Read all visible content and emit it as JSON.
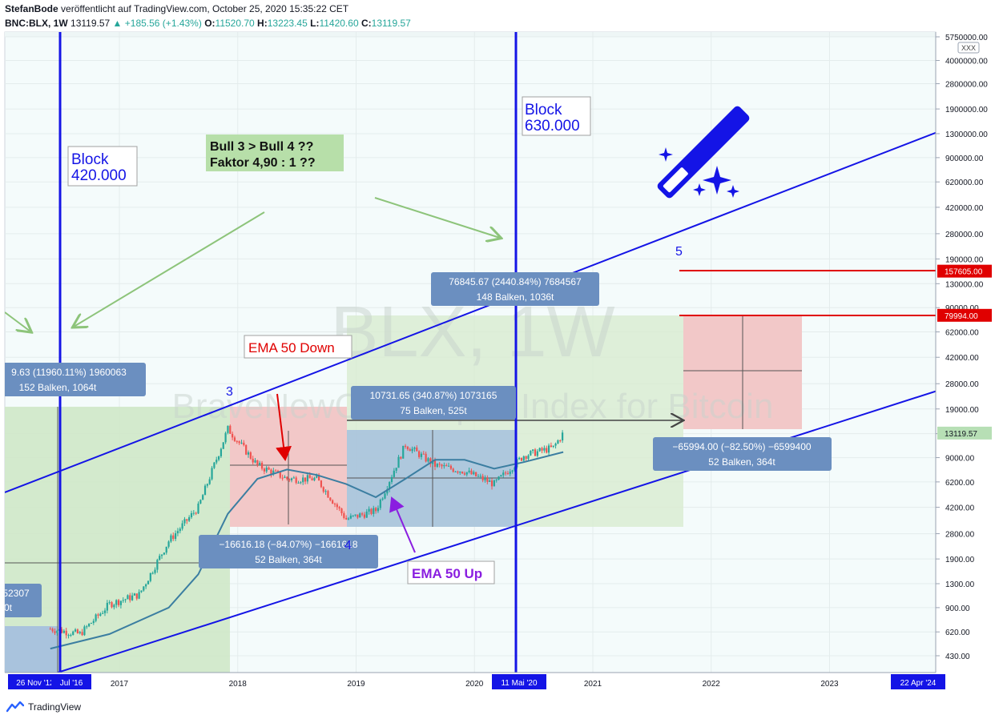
{
  "header": {
    "author": "StefanBode",
    "published": "veröffentlicht auf TradingView.com, October 25, 2020 15:35:22 CET",
    "symbol": "BNC:BLX, 1W",
    "last": "13119.57",
    "change": "+185.56 (+1.43%)",
    "o_label": "O:",
    "o_value": "11520.70",
    "h_label": "H:",
    "h_value": "13223.45",
    "l_label": "L:",
    "l_value": "11420.60",
    "c_label": "C:",
    "c_value": "13119.57"
  },
  "footer": {
    "brand": "TradingView"
  },
  "colors": {
    "channel": "#1414e6",
    "block": "#1414e6",
    "red_level": "#e00000",
    "green_zone": "#cfe8c8",
    "red_zone": "#f2c8c8",
    "blue_zone": "#a9c3dd",
    "ema": "#3b7ea1",
    "candle_up": "#26a69a",
    "candle_down": "#ef5350",
    "label_bg": "#6b8fc0",
    "arrow_green": "#8dc47a",
    "last_price": "#b7dfb5"
  },
  "chart_data": {
    "type": "candlestick",
    "scale": "log",
    "watermark": {
      "line1": "BLX, 1W",
      "line2": "BraveNewCoin Liquid Index for Bitcoin"
    },
    "y_ticks": [
      "5750000.00",
      "4000000.00",
      "2800000.00",
      "1900000.00",
      "1300000.00",
      "900000.00",
      "620000.00",
      "420000.00",
      "280000.00",
      "190000.00",
      "130000.00",
      "90000.00",
      "62000.00",
      "42000.00",
      "28000.00",
      "19000.00",
      "13000.00",
      "9000.00",
      "6200.00",
      "4200.00",
      "2800.00",
      "1900.00",
      "1300.00",
      "900.00",
      "620.00",
      "430.00"
    ],
    "x_ticks": [
      "2017",
      "2018",
      "2019",
      "2020",
      "2021",
      "2022",
      "2023"
    ],
    "x_highlight_labels": [
      "26 Nov '12",
      "Jul '16",
      "11 Mai '20",
      "22 Apr '24"
    ],
    "price_badges": [
      {
        "value": "157605.00",
        "color": "#e00000"
      },
      {
        "value": "79994.00",
        "color": "#e00000"
      },
      {
        "value": "13119.57",
        "color": "#b7dfb5"
      }
    ],
    "corner_tag": "XXX",
    "annotations": {
      "block1": {
        "line1": "Block",
        "line2": "420.000"
      },
      "block2": {
        "line1": "Block",
        "line2": "630.000"
      },
      "bull": {
        "line1": "Bull 3 > Bull 4 ??",
        "line2": "Faktor 4,90 : 1 ??"
      },
      "ema_down": "EMA 50 Down",
      "ema_up": "EMA 50 Up",
      "wave3": "3",
      "wave4": "4",
      "wave5": "5"
    },
    "measure_labels": [
      {
        "line1": "9.63 (11960.11%) 1960063",
        "line2": "152 Balken, 1064t"
      },
      {
        "line1": "76845.67 (2440.84%) 7684567",
        "line2": "148 Balken, 1036t"
      },
      {
        "line1": "10731.65 (340.87%) 1073165",
        "line2": "75 Balken, 525t"
      },
      {
        "line1": "−16616.18 (−84.07%) −1661618",
        "line2": "52 Balken, 364t"
      },
      {
        "line1": "−65994.00 (−82.50%) −6599400",
        "line2": "52 Balken, 364t"
      },
      {
        "line1": "52307",
        "line2": "0t"
      }
    ],
    "series": [
      {
        "name": "",
        "x": [
          "2016-06",
          "2016-09",
          "2016-12",
          "2017-03",
          "2017-06",
          "2017-09",
          "2017-12",
          "2018-03",
          "2018-06",
          "2018-09",
          "2018-12",
          "2019-03",
          "2019-06",
          "2019-09",
          "2019-12",
          "2020-03",
          "2020-06",
          "2020-09",
          "2020-10"
        ],
        "close": [
          650,
          600,
          950,
          1100,
          2500,
          4200,
          14000,
          8000,
          6500,
          6500,
          3500,
          4000,
          11000,
          8000,
          7300,
          6000,
          9300,
          10500,
          13119.57
        ]
      },
      {
        "name": "",
        "x": [
          "2016-06",
          "2016-12",
          "2017-06",
          "2017-09",
          "2017-12",
          "2018-03",
          "2018-06",
          "2018-09",
          "2018-12",
          "2019-03",
          "2019-06",
          "2019-09",
          "2019-12",
          "2020-03",
          "2020-06",
          "2020-10"
        ],
        "values": [
          480,
          600,
          900,
          1500,
          3800,
          6500,
          7500,
          6900,
          6000,
          4900,
          6500,
          8700,
          8700,
          7600,
          8400,
          9800
        ]
      }
    ]
  }
}
